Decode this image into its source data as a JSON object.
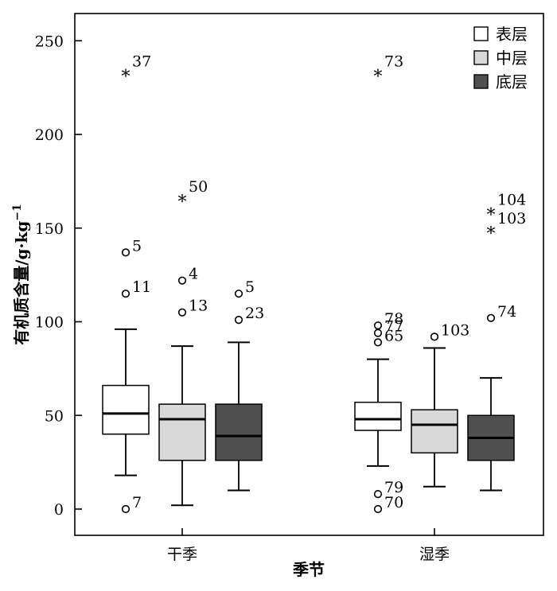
{
  "chart_data": {
    "type": "boxplot",
    "xlabel": "季节",
    "ylabel_main": "有机质含量/g·kg",
    "ylabel_sup": "−1",
    "ylim": [
      -15,
      265
    ],
    "yticks": [
      0,
      50,
      100,
      150,
      200,
      250
    ],
    "categories": [
      "干季",
      "湿季"
    ],
    "series": [
      {
        "name": "表层",
        "color": "#ffffff"
      },
      {
        "name": "中层",
        "color": "#d9d9d9"
      },
      {
        "name": "底层",
        "color": "#505050"
      }
    ],
    "boxes": [
      {
        "category": "干季",
        "series": "表层",
        "whisker_low": 18,
        "q1": 40,
        "median": 51,
        "q3": 66,
        "whisker_high": 96,
        "outliers": [
          {
            "value": 0,
            "label": "7",
            "marker": "circle"
          },
          {
            "value": 115,
            "label": "11",
            "marker": "circle"
          },
          {
            "value": 137,
            "label": "5",
            "marker": "circle"
          },
          {
            "value": 233,
            "label": "37",
            "marker": "star"
          }
        ]
      },
      {
        "category": "干季",
        "series": "中层",
        "whisker_low": 2,
        "q1": 26,
        "median": 48,
        "q3": 56,
        "whisker_high": 87,
        "outliers": [
          {
            "value": 105,
            "label": "13",
            "marker": "circle"
          },
          {
            "value": 122,
            "label": "4",
            "marker": "circle"
          },
          {
            "value": 166,
            "label": "50",
            "marker": "star"
          }
        ]
      },
      {
        "category": "干季",
        "series": "底层",
        "whisker_low": 10,
        "q1": 26,
        "median": 39,
        "q3": 56,
        "whisker_high": 89,
        "outliers": [
          {
            "value": 101,
            "label": "23",
            "marker": "circle"
          },
          {
            "value": 115,
            "label": "5",
            "marker": "circle"
          }
        ]
      },
      {
        "category": "湿季",
        "series": "表层",
        "whisker_low": 23,
        "q1": 42,
        "median": 48,
        "q3": 57,
        "whisker_high": 80,
        "outliers": [
          {
            "value": 0,
            "label": "70",
            "marker": "circle"
          },
          {
            "value": 8,
            "label": "79",
            "marker": "circle"
          },
          {
            "value": 89,
            "label": "65",
            "marker": "circle"
          },
          {
            "value": 94,
            "label": "77",
            "marker": "circle"
          },
          {
            "value": 98,
            "label": "78",
            "marker": "circle"
          },
          {
            "value": 233,
            "label": "73",
            "marker": "star"
          }
        ]
      },
      {
        "category": "湿季",
        "series": "中层",
        "whisker_low": 12,
        "q1": 30,
        "median": 45,
        "q3": 53,
        "whisker_high": 86,
        "outliers": [
          {
            "value": 92,
            "label": "103",
            "marker": "circle"
          }
        ]
      },
      {
        "category": "湿季",
        "series": "底层",
        "whisker_low": 10,
        "q1": 26,
        "median": 38,
        "q3": 50,
        "whisker_high": 70,
        "outliers": [
          {
            "value": 102,
            "label": "74",
            "marker": "circle"
          },
          {
            "value": 149,
            "label": "103",
            "marker": "star"
          },
          {
            "value": 159,
            "label": "104",
            "marker": "star"
          }
        ]
      }
    ],
    "legend_position": "top-right",
    "grid": false
  }
}
